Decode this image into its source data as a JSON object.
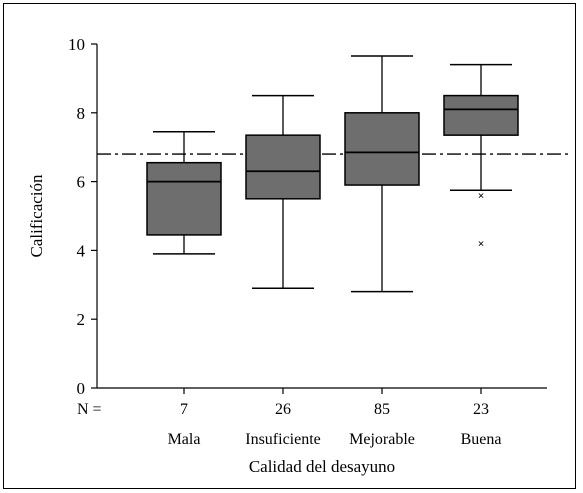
{
  "chart_data": {
    "type": "boxplot",
    "title": "",
    "xlabel": "Calidad del desayuno",
    "ylabel": "Calificación",
    "ylim": [
      0,
      10
    ],
    "yticks": [
      0,
      2,
      4,
      6,
      8,
      10
    ],
    "n_label": "N =",
    "reference_line": 6.8,
    "categories": [
      "Mala",
      "Insuficiente",
      "Mejorable",
      "Buena"
    ],
    "n": [
      "7",
      "26",
      "85",
      "23"
    ],
    "boxes": [
      {
        "category": "Mala",
        "whisker_low": 3.9,
        "q1": 4.45,
        "median": 6.0,
        "q3": 6.55,
        "whisker_high": 7.45,
        "outliers": []
      },
      {
        "category": "Insuficiente",
        "whisker_low": 2.9,
        "q1": 5.5,
        "median": 6.3,
        "q3": 7.35,
        "whisker_high": 8.5,
        "outliers": []
      },
      {
        "category": "Mejorable",
        "whisker_low": 2.8,
        "q1": 5.9,
        "median": 6.85,
        "q3": 8.0,
        "whisker_high": 9.65,
        "outliers": []
      },
      {
        "category": "Buena",
        "whisker_low": 5.75,
        "q1": 7.35,
        "median": 8.1,
        "q3": 8.5,
        "whisker_high": 9.4,
        "outliers": [
          5.6,
          4.2
        ]
      }
    ],
    "box_color": "#6e6e6e",
    "grid": false,
    "legend": "none"
  }
}
